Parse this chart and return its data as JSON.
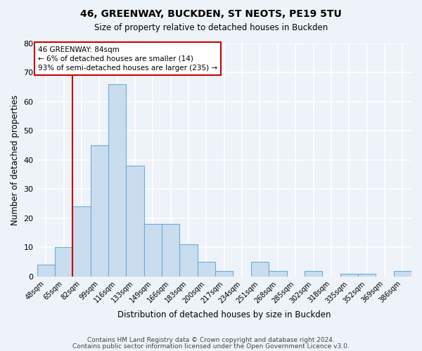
{
  "title": "46, GREENWAY, BUCKDEN, ST NEOTS, PE19 5TU",
  "subtitle": "Size of property relative to detached houses in Buckden",
  "xlabel": "Distribution of detached houses by size in Buckden",
  "ylabel": "Number of detached properties",
  "bin_labels": [
    "48sqm",
    "65sqm",
    "82sqm",
    "99sqm",
    "116sqm",
    "133sqm",
    "149sqm",
    "166sqm",
    "183sqm",
    "200sqm",
    "217sqm",
    "234sqm",
    "251sqm",
    "268sqm",
    "285sqm",
    "302sqm",
    "318sqm",
    "335sqm",
    "352sqm",
    "369sqm",
    "386sqm"
  ],
  "bar_values": [
    4,
    10,
    24,
    45,
    66,
    38,
    18,
    18,
    11,
    5,
    2,
    0,
    5,
    2,
    0,
    2,
    0,
    1,
    1,
    0,
    2
  ],
  "bar_color": "#c9ddef",
  "bar_edge_color": "#6aaed6",
  "ylim": [
    0,
    80
  ],
  "yticks": [
    0,
    10,
    20,
    30,
    40,
    50,
    60,
    70,
    80
  ],
  "vline_x": 1.5,
  "annotation_text": "46 GREENWAY: 84sqm\n← 6% of detached houses are smaller (14)\n93% of semi-detached houses are larger (235) →",
  "annotation_box_color": "#ffffff",
  "annotation_box_edge_color": "#cc0000",
  "vline_color": "#cc0000",
  "background_color": "#eef2f9",
  "grid_color": "#ffffff",
  "footer_line1": "Contains HM Land Registry data © Crown copyright and database right 2024.",
  "footer_line2": "Contains public sector information licensed under the Open Government Licence v3.0."
}
